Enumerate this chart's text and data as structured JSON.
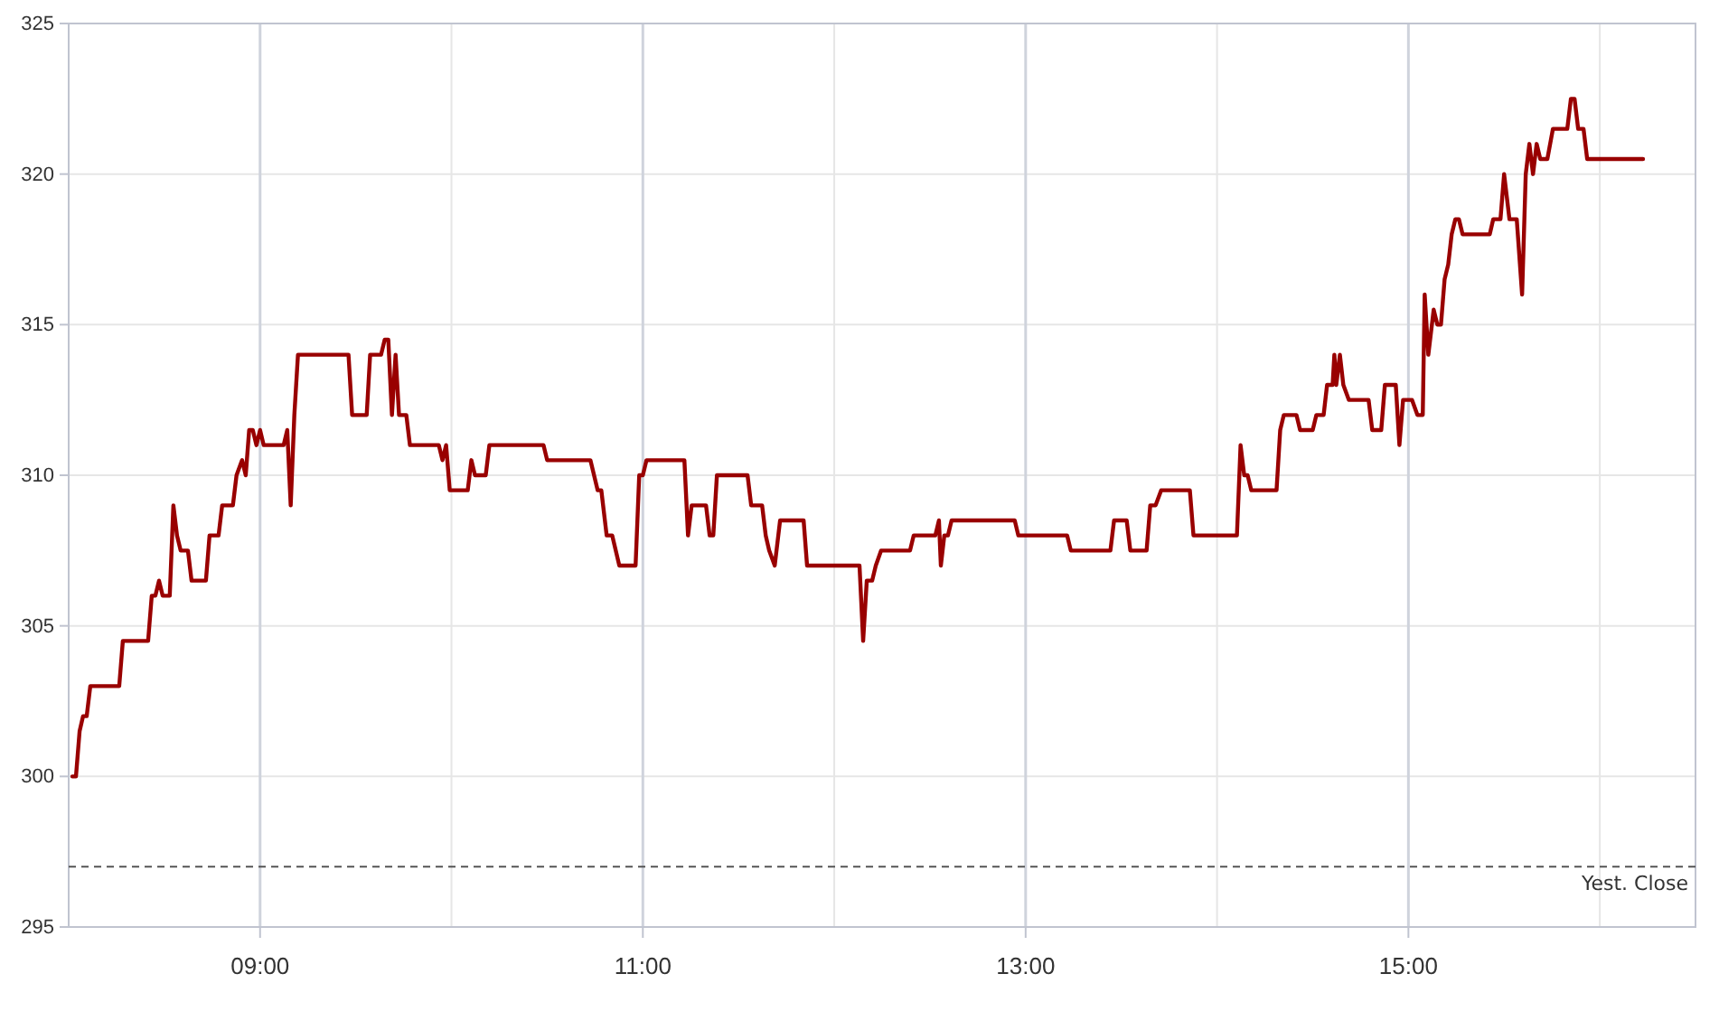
{
  "chart_data": {
    "type": "line",
    "x": [
      8.019,
      8.038,
      8.057,
      8.075,
      8.094,
      8.113,
      8.264,
      8.283,
      8.415,
      8.434,
      8.453,
      8.472,
      8.491,
      8.528,
      8.547,
      8.566,
      8.585,
      8.623,
      8.642,
      8.717,
      8.736,
      8.783,
      8.802,
      8.858,
      8.877,
      8.906,
      8.925,
      8.943,
      8.962,
      8.981,
      9.0,
      9.019,
      9.123,
      9.142,
      9.16,
      9.179,
      9.198,
      9.462,
      9.481,
      9.557,
      9.575,
      9.632,
      9.651,
      9.67,
      9.689,
      9.708,
      9.726,
      9.764,
      9.783,
      9.934,
      9.953,
      9.972,
      9.991,
      10.085,
      10.104,
      10.123,
      10.179,
      10.198,
      10.481,
      10.5,
      10.726,
      10.764,
      10.783,
      10.811,
      10.84,
      10.877,
      10.962,
      10.981,
      11.0,
      11.019,
      11.217,
      11.236,
      11.255,
      11.33,
      11.349,
      11.368,
      11.387,
      11.547,
      11.566,
      11.623,
      11.642,
      11.66,
      11.689,
      11.717,
      11.84,
      11.858,
      12.132,
      12.151,
      12.17,
      12.198,
      12.217,
      12.245,
      12.396,
      12.415,
      12.528,
      12.547,
      12.557,
      12.575,
      12.594,
      12.613,
      12.943,
      12.962,
      13.217,
      13.236,
      13.443,
      13.462,
      13.528,
      13.547,
      13.632,
      13.651,
      13.679,
      13.708,
      13.858,
      13.877,
      14.104,
      14.123,
      14.142,
      14.16,
      14.179,
      14.311,
      14.33,
      14.349,
      14.415,
      14.434,
      14.5,
      14.519,
      14.557,
      14.575,
      14.604,
      14.613,
      14.623,
      14.642,
      14.66,
      14.689,
      14.792,
      14.811,
      14.858,
      14.877,
      14.934,
      14.953,
      14.972,
      15.019,
      15.047,
      15.075,
      15.085,
      15.104,
      15.132,
      15.151,
      15.17,
      15.189,
      15.208,
      15.226,
      15.245,
      15.264,
      15.283,
      15.425,
      15.443,
      15.481,
      15.5,
      15.528,
      15.566,
      15.594,
      15.613,
      15.632,
      15.651,
      15.67,
      15.689,
      15.726,
      15.755,
      15.83,
      15.849,
      15.868,
      15.887,
      15.915,
      15.934,
      16.226
    ],
    "series": [
      {
        "color": "#990000",
        "values": [
          300,
          300,
          301.5,
          302,
          302,
          303,
          303,
          304.5,
          304.5,
          306,
          306,
          306.5,
          306,
          306,
          309,
          308,
          307.5,
          307.5,
          306.5,
          306.5,
          308,
          308,
          309,
          309,
          310,
          310.5,
          310,
          311.5,
          311.5,
          311,
          311.5,
          311,
          311,
          311.5,
          309,
          312,
          314,
          314,
          312,
          312,
          314,
          314,
          314.5,
          314.5,
          312,
          314,
          312,
          312,
          311,
          311,
          310.5,
          311,
          309.5,
          309.5,
          310.5,
          310,
          310,
          311,
          311,
          310.5,
          310.5,
          309.5,
          309.5,
          308,
          308,
          307,
          307,
          310,
          310,
          310.5,
          310.5,
          308,
          309,
          309,
          308,
          308,
          310,
          310,
          309,
          309,
          308,
          307.5,
          307,
          308.5,
          308.5,
          307,
          307,
          304.5,
          306.5,
          306.5,
          307,
          307.5,
          307.5,
          308,
          308,
          308.5,
          307,
          308,
          308,
          308.5,
          308.5,
          308,
          308,
          307.5,
          307.5,
          308.5,
          308.5,
          307.5,
          307.5,
          309,
          309,
          309.5,
          309.5,
          308,
          308,
          311,
          310,
          310,
          309.5,
          309.5,
          311.5,
          312,
          312,
          311.5,
          311.5,
          312,
          312,
          313,
          313,
          314,
          313,
          314,
          313,
          312.5,
          312.5,
          311.5,
          311.5,
          313,
          313,
          311,
          312.5,
          312.5,
          312,
          312,
          316,
          314,
          315.5,
          315,
          315,
          316.5,
          317,
          318,
          318.5,
          318.5,
          318,
          318,
          318.5,
          318.5,
          320,
          318.5,
          318.5,
          316,
          320,
          321,
          320,
          321,
          320.5,
          320.5,
          321.5,
          321.5,
          322.5,
          322.5,
          321.5,
          321.5,
          320.5,
          320.5
        ]
      }
    ],
    "xlim": [
      8,
      16.5
    ],
    "xticks": [
      {
        "value": 9,
        "label": "09:00"
      },
      {
        "value": 10,
        "label": null
      },
      {
        "value": 11,
        "label": "11:00"
      },
      {
        "value": 12,
        "label": null
      },
      {
        "value": 13,
        "label": "13:00"
      },
      {
        "value": 14,
        "label": null
      },
      {
        "value": 15,
        "label": "15:00"
      },
      {
        "value": 16,
        "label": null
      }
    ],
    "ylim": [
      295,
      325
    ],
    "yticks": [
      295,
      300,
      305,
      310,
      315,
      320,
      325
    ],
    "grid": true,
    "marker": "none",
    "line_style": "solid",
    "ref_lines": [
      {
        "axis": "y",
        "value": 297,
        "label": "Yest. Close",
        "color": "#555555",
        "line_style": "dashed"
      }
    ]
  }
}
